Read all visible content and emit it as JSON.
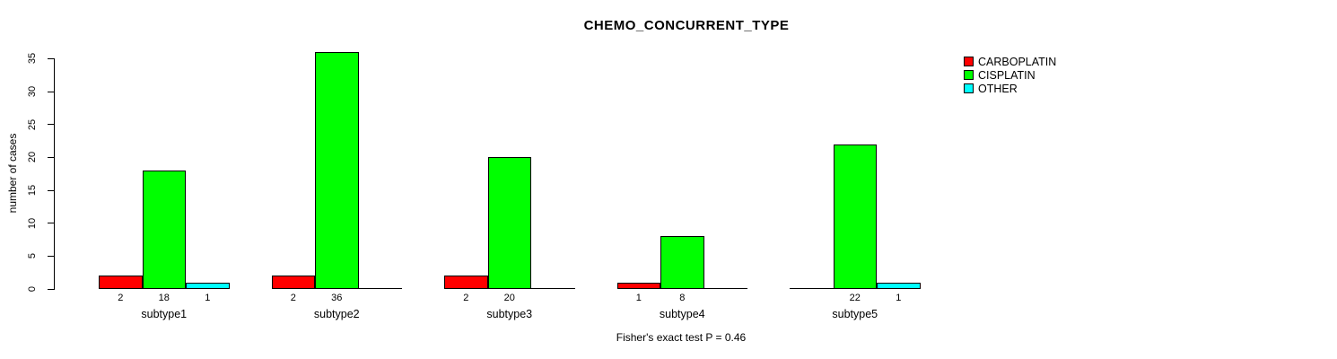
{
  "title": "CHEMO_CONCURRENT_TYPE",
  "caption": "Fisher's exact test P = 0.46",
  "chart_data": {
    "type": "bar",
    "title": "CHEMO_CONCURRENT_TYPE",
    "xlabel": "",
    "ylabel": "number of cases",
    "ylim": [
      0,
      36
    ],
    "yticks": [
      0,
      5,
      10,
      15,
      20,
      25,
      30,
      35
    ],
    "grid": false,
    "legend_position": "top-right",
    "bar_value_labels_shown": true,
    "categories": [
      "subtype1",
      "subtype2",
      "subtype3",
      "subtype4",
      "subtype5"
    ],
    "series": [
      {
        "name": "CARBOPLATIN",
        "color": "#ff0000",
        "values": [
          2,
          2,
          2,
          1,
          0
        ]
      },
      {
        "name": "CISPLATIN",
        "color": "#00ff00",
        "values": [
          18,
          36,
          20,
          8,
          22
        ]
      },
      {
        "name": "OTHER",
        "color": "#00ffff",
        "values": [
          1,
          0,
          0,
          0,
          1
        ]
      }
    ],
    "annotation": "Fisher's exact test P = 0.46"
  }
}
